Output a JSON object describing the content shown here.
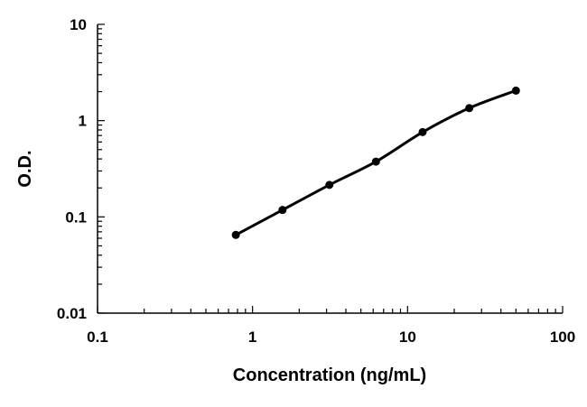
{
  "chart_data": {
    "type": "scatter",
    "title": "",
    "xlabel": "Concentration (ng/mL)",
    "ylabel": "O.D.",
    "x_scale": "log",
    "y_scale": "log",
    "xlim": [
      0.1,
      100
    ],
    "ylim": [
      0.01,
      10
    ],
    "x_ticks": [
      "0.1",
      "1",
      "10",
      "100"
    ],
    "y_ticks": [
      "0.01",
      "0.1",
      "1",
      "10"
    ],
    "grid": false,
    "legend": "none",
    "series": [
      {
        "x": [
          0.78,
          1.56,
          3.13,
          6.25,
          12.5,
          25,
          50
        ],
        "y": [
          0.065,
          0.118,
          0.215,
          0.375,
          0.76,
          1.35,
          2.05
        ],
        "marker": "circle",
        "fit_curve": true
      }
    ],
    "colors": {
      "line": "#000000",
      "points": "#000000",
      "axes": "#000000"
    }
  }
}
